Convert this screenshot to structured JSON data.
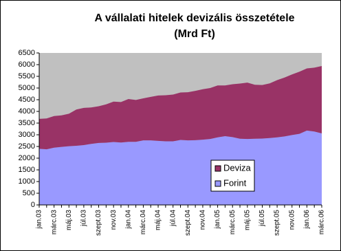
{
  "chart_data": {
    "type": "stacked-area",
    "title": "A vállalati hitelek devizális összetétele",
    "subtitle": "(Mrd Ft)",
    "categories": [
      "jan.03",
      null,
      "márc.03",
      null,
      "máj.03",
      null,
      "júl.03",
      null,
      "szept.03",
      null,
      "nov.03",
      null,
      "jan.04",
      null,
      "márc.04",
      null,
      "máj.04",
      null,
      "júl.04",
      null,
      "szept.04",
      null,
      "nov.04",
      null,
      "jan.05",
      null,
      "márc.05",
      null,
      "máj.05",
      null,
      "júl.05",
      null,
      "szept.05",
      null,
      "nov.05",
      null,
      "jan.06",
      null,
      "márc.06"
    ],
    "series": [
      {
        "name": "Forint",
        "color": "#9999ff",
        "values": [
          2400,
          2380,
          2450,
          2480,
          2510,
          2530,
          2560,
          2610,
          2650,
          2660,
          2690,
          2670,
          2700,
          2700,
          2760,
          2760,
          2740,
          2720,
          2720,
          2780,
          2760,
          2770,
          2790,
          2820,
          2890,
          2940,
          2900,
          2830,
          2820,
          2830,
          2840,
          2860,
          2890,
          2930,
          2990,
          3040,
          3180,
          3140,
          3060
        ]
      },
      {
        "name": "Deviza",
        "color": "#993366",
        "values": [
          1280,
          1320,
          1350,
          1350,
          1390,
          1550,
          1590,
          1560,
          1570,
          1640,
          1730,
          1730,
          1830,
          1790,
          1800,
          1860,
          1940,
          1970,
          2000,
          2030,
          2060,
          2110,
          2160,
          2180,
          2220,
          2170,
          2260,
          2360,
          2410,
          2310,
          2290,
          2340,
          2450,
          2520,
          2590,
          2660,
          2660,
          2730,
          2880
        ]
      }
    ],
    "ylim": [
      0,
      6500
    ],
    "yticks": [
      0,
      500,
      1000,
      1500,
      2000,
      2500,
      3000,
      3500,
      4000,
      4500,
      5000,
      5500,
      6000,
      6500
    ],
    "plot_background": "#c0c0c0",
    "legend": "inside"
  }
}
